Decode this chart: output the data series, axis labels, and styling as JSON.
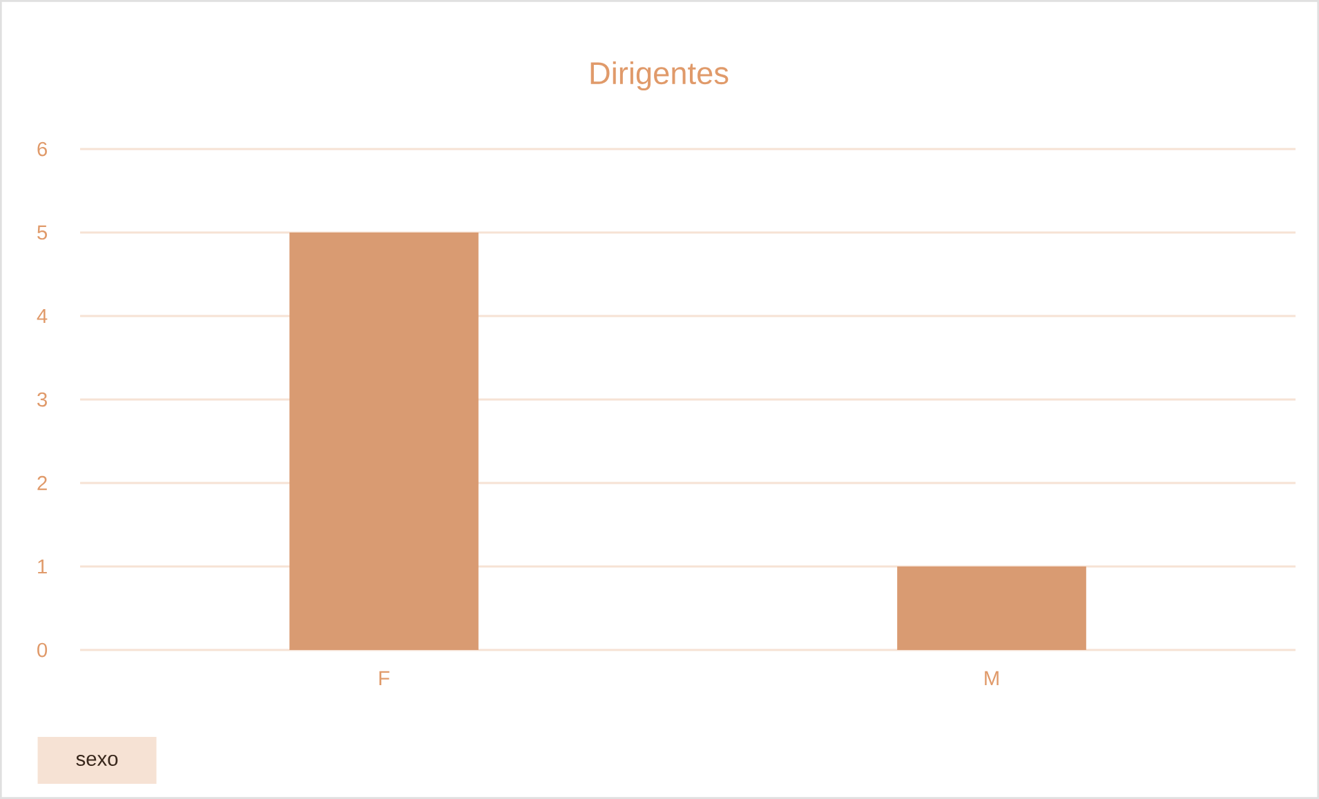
{
  "chart_data": {
    "type": "bar",
    "title": "Dirigentes",
    "categories": [
      "F",
      "M"
    ],
    "values": [
      5,
      1
    ],
    "color": "#d99b72",
    "ylim": [
      0,
      6
    ],
    "yticks": [
      0,
      1,
      2,
      3,
      4,
      5,
      6
    ],
    "grid": "y",
    "annotations": [
      "sexo"
    ]
  }
}
